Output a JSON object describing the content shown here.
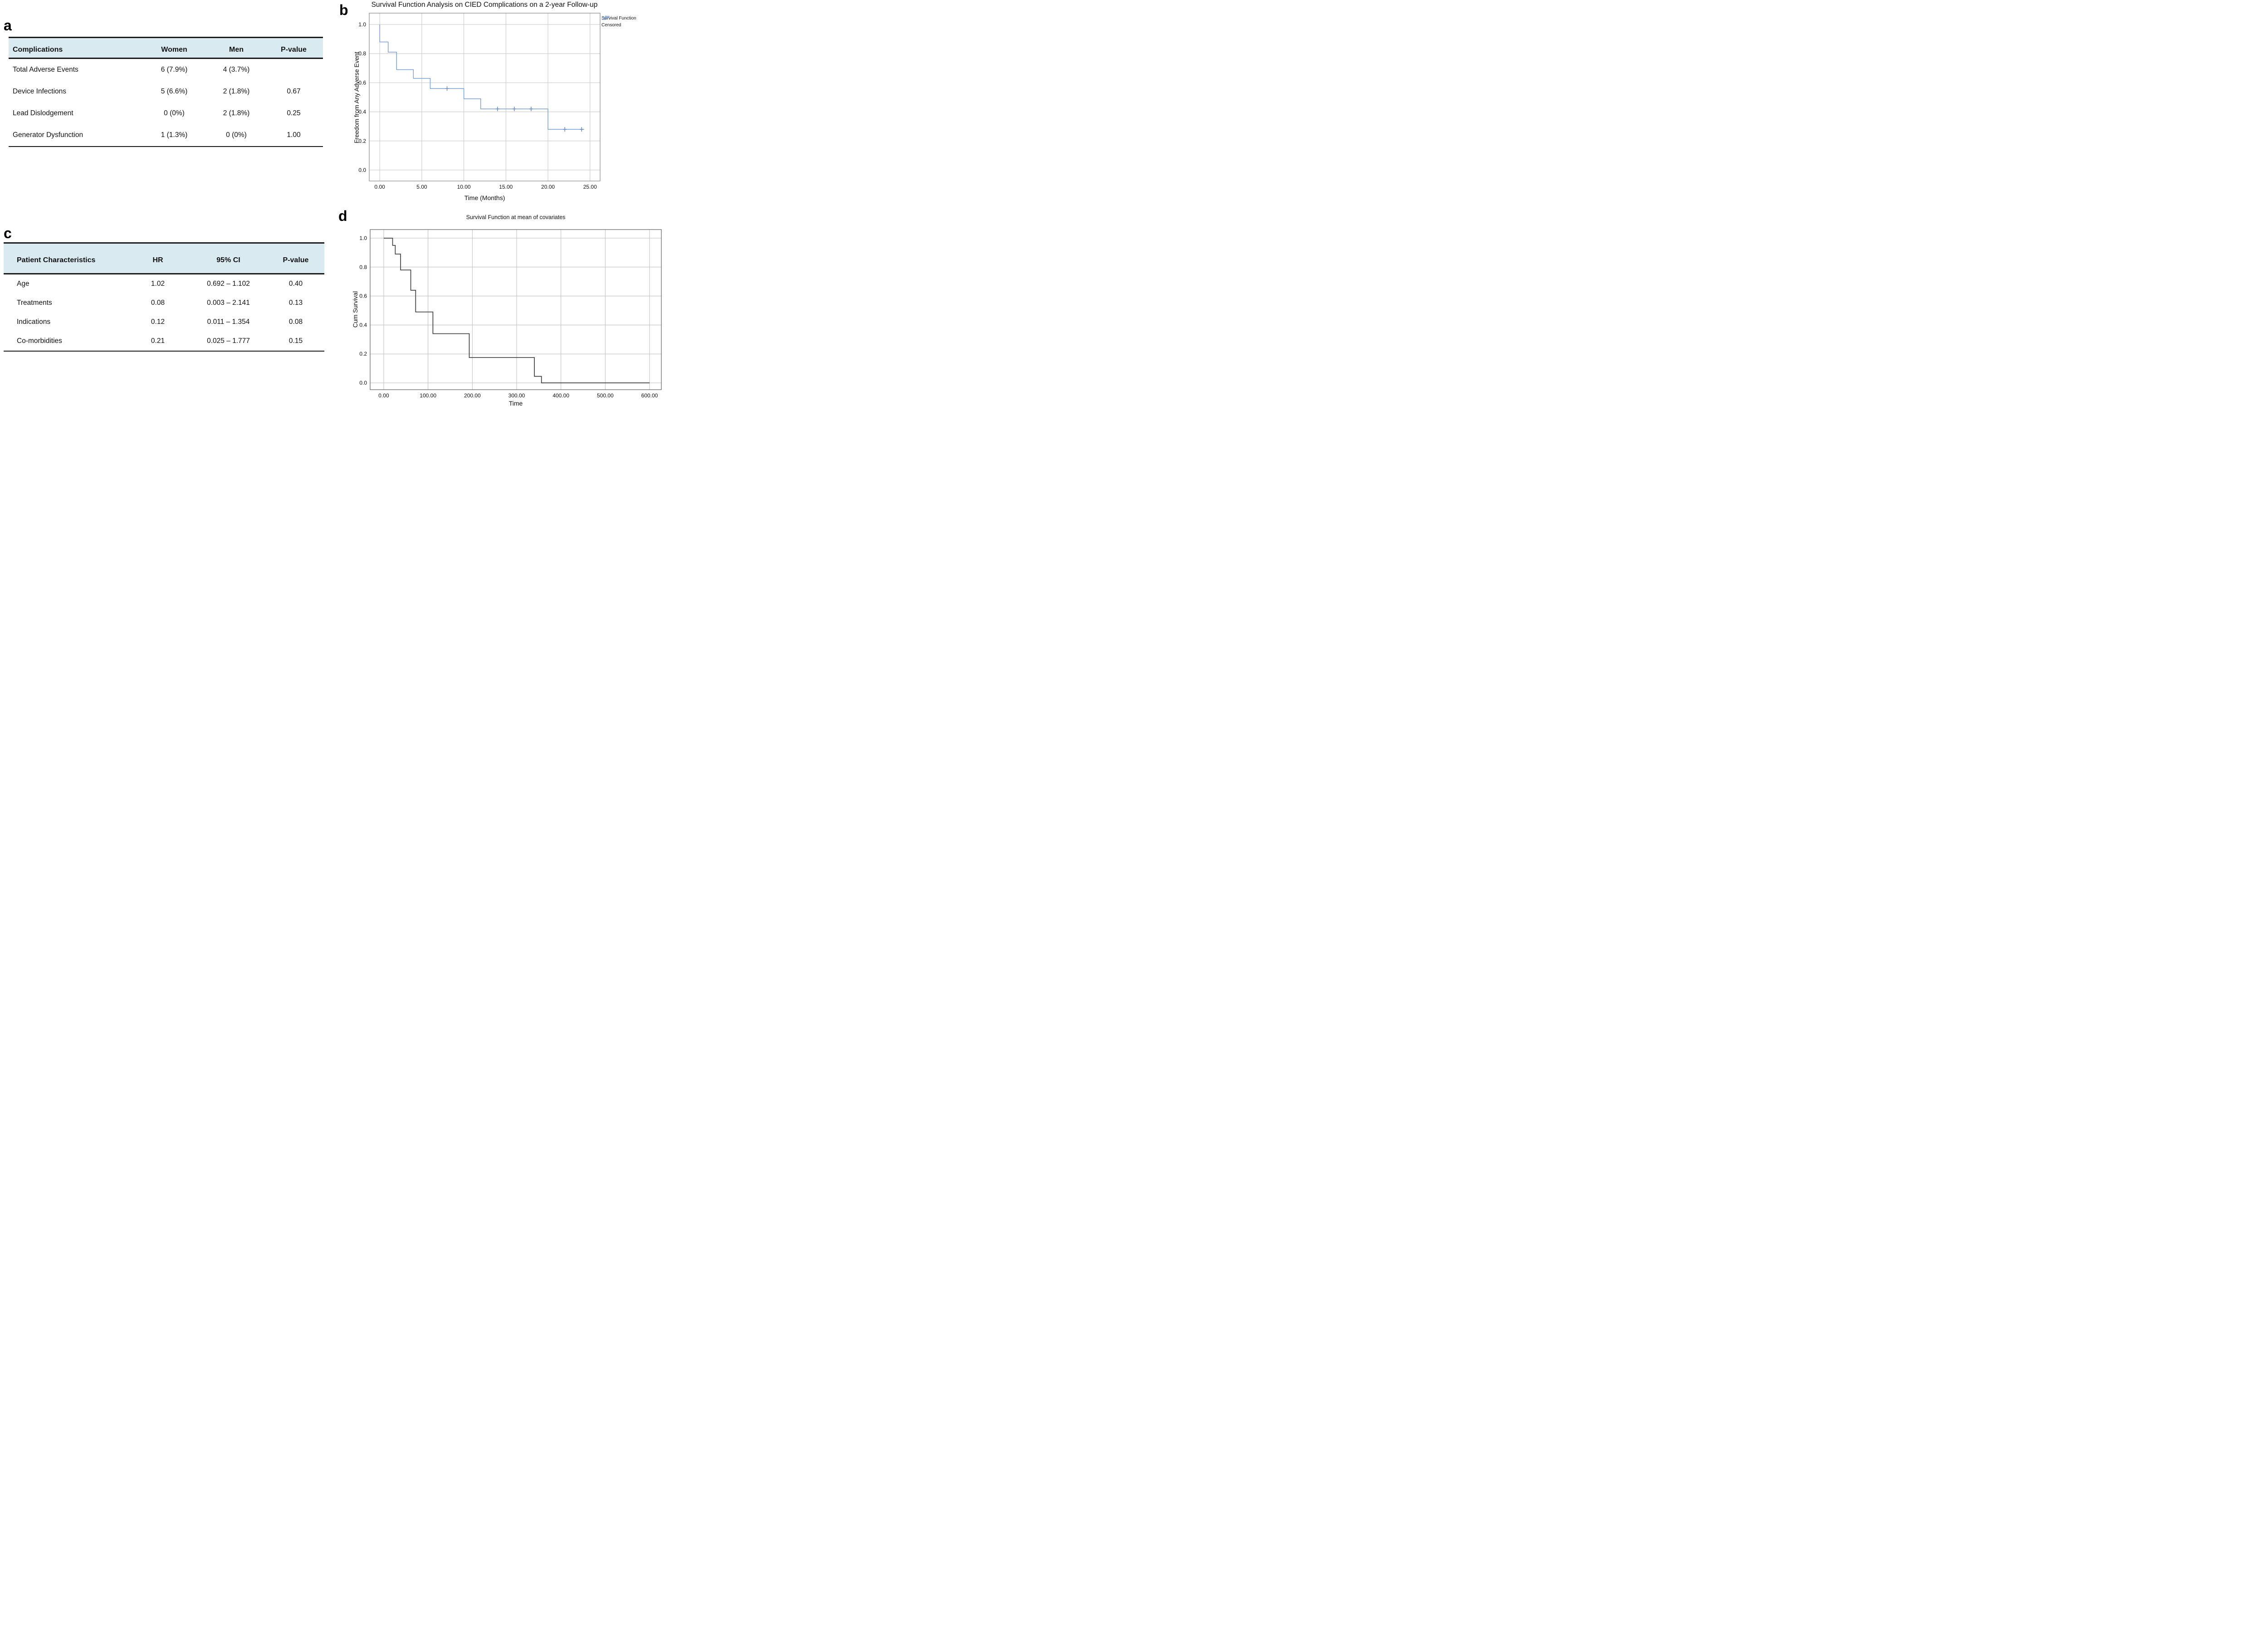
{
  "figure": {
    "background": "#ffffff"
  },
  "colors": {
    "background": "#ffffff",
    "table_header_bg": "#daeaf1",
    "rule": "#1a1a1a",
    "text": "#111111",
    "accent_blue": "#7ba0d8"
  },
  "panels": {
    "a": {
      "label": "a",
      "table": {
        "headers": [
          "Complications",
          "Women",
          "Men",
          "P-value"
        ],
        "rows": [
          [
            "Total Adverse Events",
            "6 (7.9%)",
            "4 (3.7%)",
            ""
          ],
          [
            "Device Infections",
            "5 (6.6%)",
            "2 (1.8%)",
            "0.67"
          ],
          [
            "Lead Dislodgement",
            "0 (0%)",
            "2 (1.8%)",
            "0.25"
          ],
          [
            "Generator Dysfunction",
            "1 (1.3%)",
            "0 (0%)",
            "1.00"
          ]
        ]
      }
    },
    "b": {
      "label": "b"
    },
    "c": {
      "label": "c",
      "table": {
        "headers": [
          "Patient Characteristics",
          "HR",
          "95% CI",
          "P-value"
        ],
        "rows": [
          [
            "Age",
            "1.02",
            "0.692 – 1.102",
            "0.40"
          ],
          [
            "Treatments",
            "0.08",
            "0.003 – 2.141",
            "0.13"
          ],
          [
            "Indications",
            "0.12",
            "0.011 – 1.354",
            "0.08"
          ],
          [
            "Co-morbidities",
            "0.21",
            "0.025 – 1.777",
            "0.15"
          ]
        ]
      }
    },
    "d": {
      "label": "d"
    }
  },
  "chart_data": [
    {
      "id": "b",
      "type": "line",
      "subtype": "step-survival",
      "title": "Survival Function Analysis on CIED Complications on a 2-year Follow-up",
      "xlabel": "Time (Months)",
      "ylabel": "Freedom from Any Adverse Event",
      "xlim": [
        -1.25,
        26.2
      ],
      "ylim": [
        -0.075,
        1.078
      ],
      "grid": true,
      "grid_color": "#c6c6c6",
      "frame_color": "#8a8a8a",
      "xticks": {
        "values": [
          0,
          5,
          10,
          15,
          20,
          25
        ],
        "labels": [
          "0.00",
          "5.00",
          "10.00",
          "15.00",
          "20.00",
          "25.00"
        ]
      },
      "yticks": {
        "values": [
          1.0,
          0.8,
          0.6,
          0.4,
          0.2,
          0.0
        ],
        "labels": [
          "1.0",
          "0.8",
          "0.6",
          "0.4",
          "0.2",
          "0.0"
        ]
      },
      "legend": {
        "position": "top-right",
        "entries": [
          "Survival Function",
          "Censored"
        ]
      },
      "series": [
        {
          "name": "Survival Function",
          "color": "#7ba0d8",
          "stroke_width": 1.5,
          "steps": [
            [
              0,
              1.0
            ],
            [
              0,
              0.88
            ],
            [
              1,
              0.81
            ],
            [
              2,
              0.69
            ],
            [
              4,
              0.63
            ],
            [
              6,
              0.56
            ],
            [
              10,
              0.49
            ],
            [
              12,
              0.42
            ],
            [
              20,
              0.28
            ]
          ],
          "end_x": 24.3
        },
        {
          "name": "Censored",
          "color": "#5f87c4",
          "marker": "plus",
          "points": [
            [
              8,
              0.56
            ],
            [
              14,
              0.42
            ],
            [
              16,
              0.42
            ],
            [
              18,
              0.42
            ],
            [
              22,
              0.28
            ],
            [
              24,
              0.28
            ]
          ]
        }
      ]
    },
    {
      "id": "d",
      "type": "line",
      "subtype": "step-survival",
      "title": "Survival Function at mean of covariates",
      "xlabel": "Time",
      "ylabel": "Cum Survival",
      "xlim": [
        -30.7,
        626.6
      ],
      "ylim": [
        -0.047,
        1.0595
      ],
      "grid": true,
      "grid_color": "#bdbdbd",
      "frame_color": "#5f5f5f",
      "xticks": {
        "values": [
          0,
          100,
          200,
          300,
          400,
          500,
          600
        ],
        "labels": [
          "0.00",
          "100.00",
          "200.00",
          "300.00",
          "400.00",
          "500.00",
          "600.00"
        ]
      },
      "yticks": {
        "values": [
          1.0,
          0.8,
          0.6,
          0.4,
          0.2,
          0.0
        ],
        "labels": [
          "1.0",
          "0.8",
          "0.6",
          "0.4",
          "0.2",
          "0.0"
        ]
      },
      "series": [
        {
          "name": "Survival Function",
          "color": "#3f3f3f",
          "stroke_width": 1.7,
          "steps": [
            [
              0,
              1.0
            ],
            [
              20,
              0.95
            ],
            [
              26,
              0.89
            ],
            [
              38,
              0.78
            ],
            [
              61,
              0.64
            ],
            [
              72,
              0.49
            ],
            [
              111,
              0.34
            ],
            [
              193,
              0.175
            ],
            [
              340,
              0.045
            ],
            [
              356,
              0.0
            ]
          ],
          "end_x": 600
        }
      ]
    }
  ]
}
